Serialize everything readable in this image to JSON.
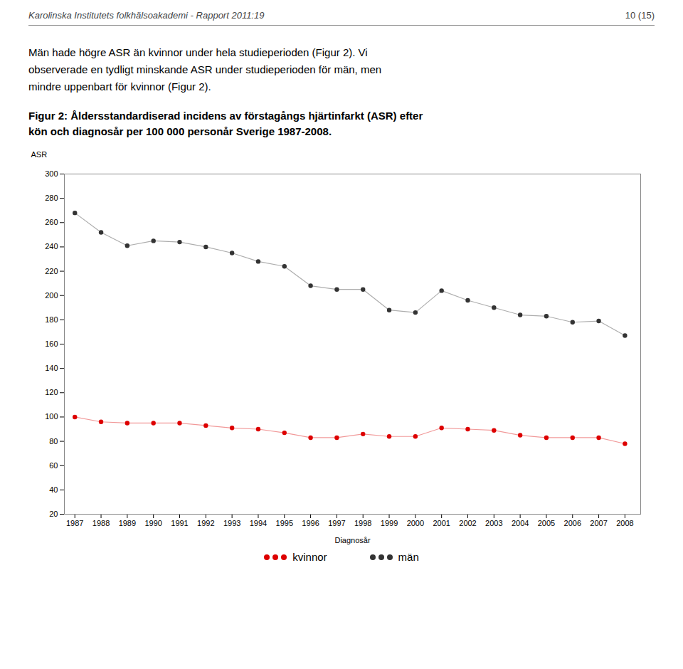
{
  "chart_data": {
    "type": "line",
    "title": "Figur 2: Åldersstandardiserad incidens av förstagångs hjärtinfarkt (ASR) efter\nkön och diagnosår per 100 000 personår Sverige 1987-2008.",
    "annotations": [
      "Karolinska Institutets folkhälsoakademi - Rapport 2011:19",
      "10 (15)",
      "Män hade högre ASR än kvinnor under hela studieperioden (Figur 2). Vi\nobserverade en tydligt minskande ASR under studieperioden för män, men\nmindre uppenbart för kvinnor (Figur 2)."
    ],
    "x_label": "Diagnosår",
    "y_label": "ASR",
    "x": [
      1987,
      1988,
      1989,
      1990,
      1991,
      1992,
      1993,
      1994,
      1995,
      1996,
      1997,
      1998,
      1999,
      2000,
      2001,
      2002,
      2003,
      2004,
      2005,
      2006,
      2007,
      2008
    ],
    "series": [
      {
        "name": "män",
        "color": "#333333",
        "marker": "circle",
        "line_style": "solid",
        "values": [
          268,
          252,
          241,
          245,
          244,
          240,
          235,
          228,
          224,
          208,
          205,
          205,
          188,
          186,
          204,
          196,
          190,
          184,
          183,
          178,
          179,
          167
        ]
      },
      {
        "name": "kvinnor",
        "color": "#dd0000",
        "marker": "circle",
        "line_style": "solid",
        "values": [
          100,
          96,
          95,
          95,
          95,
          93,
          91,
          90,
          87,
          83,
          83,
          86,
          84,
          84,
          91,
          90,
          89,
          85,
          83,
          83,
          83,
          78
        ]
      }
    ],
    "xlim": [
      1986.6,
      2008.6
    ],
    "xticks": [
      1987,
      1988,
      1989,
      1990,
      1991,
      1992,
      1993,
      1994,
      1995,
      1996,
      1997,
      1998,
      1999,
      2000,
      2001,
      2002,
      2003,
      2004,
      2005,
      2006,
      2007,
      2008
    ],
    "ylim": [
      20,
      300
    ],
    "yticks": [
      20,
      40,
      60,
      80,
      100,
      120,
      140,
      160,
      180,
      200,
      220,
      240,
      260,
      280,
      300
    ],
    "grid": false,
    "legend": "bottom"
  }
}
